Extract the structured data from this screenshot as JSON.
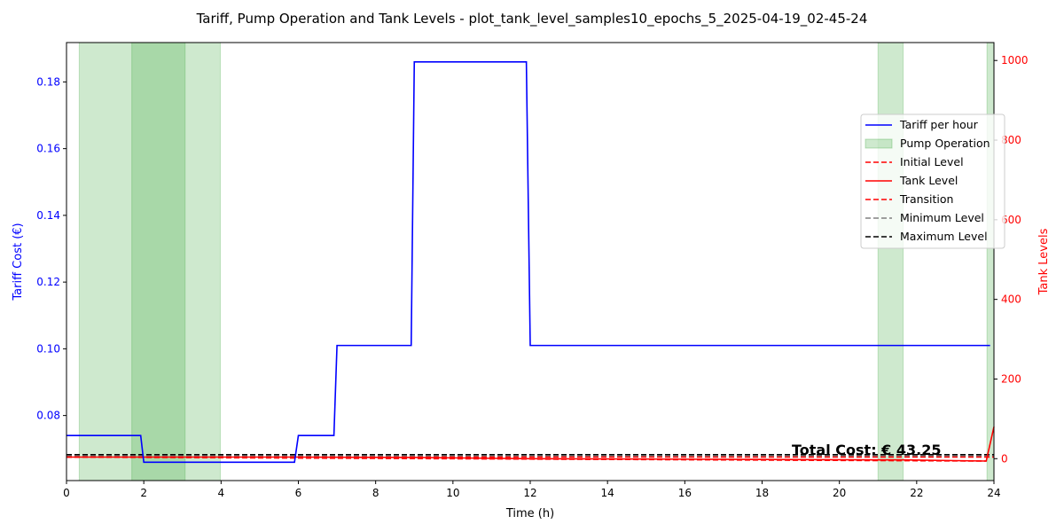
{
  "chart_data": {
    "type": "line",
    "title": "Tariff, Pump Operation and Tank Levels - plot_tank_level_samples10_epochs_5_2025-04-19_02-45-24",
    "xlabel": "Time (h)",
    "ylabel_left": "Tariff Cost (€)",
    "ylabel_right": "Tank Levels",
    "xlim": [
      0,
      24
    ],
    "ylim_left": [
      0.0605,
      0.1918
    ],
    "ylim_right": [
      -55,
      1045
    ],
    "x_ticks": [
      0,
      2,
      4,
      6,
      8,
      10,
      12,
      14,
      16,
      18,
      20,
      22,
      24
    ],
    "y_left_ticks": [
      0.08,
      0.1,
      0.12,
      0.14,
      0.16,
      0.18
    ],
    "y_right_ticks": [
      0,
      200,
      400,
      600,
      800,
      1000
    ],
    "tariff": {
      "name": "Tariff per hour",
      "color": "#0000ff",
      "points": [
        [
          0,
          0.074
        ],
        [
          1.92,
          0.074
        ],
        [
          2.0,
          0.066
        ],
        [
          5.9,
          0.066
        ],
        [
          6.0,
          0.074
        ],
        [
          6.92,
          0.074
        ],
        [
          7.0,
          0.101
        ],
        [
          8.92,
          0.101
        ],
        [
          9.0,
          0.186
        ],
        [
          11.9,
          0.186
        ],
        [
          12.0,
          0.101
        ],
        [
          23.9,
          0.101
        ]
      ]
    },
    "pump_operation": {
      "name": "Pump Operation",
      "color": "#2ca02c",
      "intervals": [
        [
          0.33,
          3.07
        ],
        [
          1.69,
          3.98
        ],
        [
          21.0,
          21.65
        ],
        [
          23.82,
          24.0
        ]
      ]
    },
    "initial_level": {
      "name": "Initial Level",
      "color": "#ff0000",
      "points": [
        [
          0,
          4.0
        ],
        [
          24,
          4.0
        ]
      ]
    },
    "tank_level": {
      "name": "Tank Level",
      "color": "#ff0000",
      "points": [
        [
          0,
          4
        ],
        [
          3,
          4
        ],
        [
          6,
          4
        ],
        [
          9,
          3
        ],
        [
          12,
          0
        ],
        [
          15,
          -1
        ],
        [
          18,
          -2
        ],
        [
          21,
          -3
        ],
        [
          21.65,
          -3
        ],
        [
          23.8,
          -6
        ],
        [
          24,
          80
        ]
      ]
    },
    "transition": {
      "name": "Transition",
      "color": "#ff0000",
      "points": [
        [
          0,
          4
        ],
        [
          12,
          -1
        ],
        [
          23.8,
          -6
        ]
      ]
    },
    "minimum_level": {
      "name": "Minimum Level",
      "color": "#808080",
      "points": [
        [
          0,
          6
        ],
        [
          24,
          6
        ]
      ]
    },
    "maximum_level": {
      "name": "Maximum Level",
      "color": "#000000",
      "points": [
        [
          0,
          10
        ],
        [
          24,
          10
        ]
      ]
    },
    "annotation": "Total Cost: € 43.25",
    "legend_position": "right",
    "grid": false
  }
}
